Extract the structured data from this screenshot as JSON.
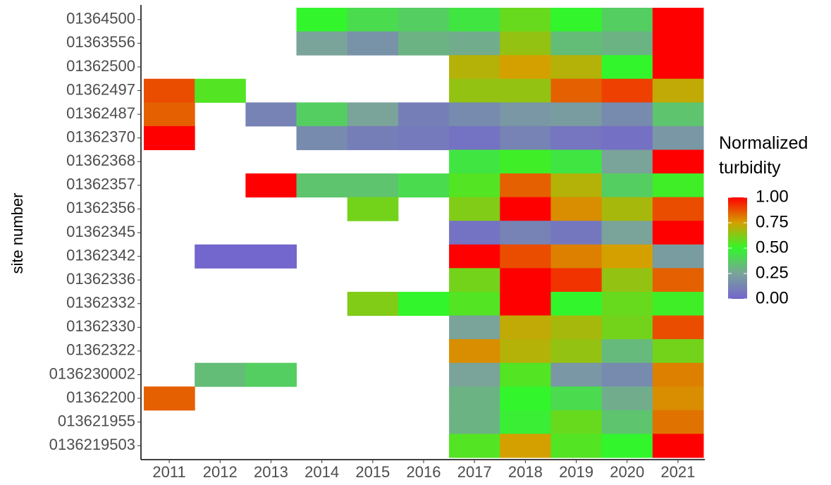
{
  "chart_data": {
    "type": "heatmap",
    "x_label": "",
    "y_label": "site number",
    "legend_title": "Normalized turbidity",
    "categories": [
      "2011",
      "2012",
      "2013",
      "2014",
      "2015",
      "2016",
      "2017",
      "2018",
      "2019",
      "2020",
      "2021"
    ],
    "y_categories": [
      "01364500",
      "01363556",
      "01362500",
      "01362497",
      "01362487",
      "01362370",
      "01362368",
      "01362357",
      "01362356",
      "01362345",
      "01362342",
      "01362336",
      "01362332",
      "01362330",
      "01362322",
      "0136230002",
      "01362200",
      "013621955",
      "0136219503"
    ],
    "values": [
      [
        null,
        null,
        null,
        0.5,
        0.42,
        0.38,
        0.45,
        0.58,
        0.5,
        0.38,
        1.0
      ],
      [
        null,
        null,
        null,
        0.25,
        0.18,
        0.3,
        0.28,
        0.65,
        0.33,
        0.3,
        1.0
      ],
      [
        null,
        null,
        null,
        null,
        null,
        null,
        0.7,
        0.75,
        0.7,
        0.5,
        1.0
      ],
      [
        0.88,
        0.55,
        null,
        null,
        null,
        null,
        0.65,
        0.65,
        0.85,
        0.9,
        0.72
      ],
      [
        0.85,
        null,
        0.12,
        0.38,
        0.25,
        0.1,
        0.15,
        0.2,
        0.22,
        0.15,
        0.35
      ],
      [
        1.0,
        null,
        null,
        0.15,
        0.1,
        0.08,
        0.05,
        0.12,
        0.06,
        0.04,
        0.2
      ],
      [
        null,
        null,
        null,
        null,
        null,
        null,
        0.45,
        0.52,
        0.45,
        0.25,
        1.0
      ],
      [
        null,
        null,
        1.0,
        0.35,
        0.35,
        0.42,
        0.55,
        0.85,
        0.7,
        0.38,
        0.52
      ],
      [
        null,
        null,
        null,
        null,
        0.6,
        null,
        0.62,
        1.0,
        0.78,
        0.68,
        0.88
      ],
      [
        null,
        null,
        null,
        null,
        null,
        null,
        0.05,
        0.12,
        0.07,
        0.25,
        1.0
      ],
      [
        null,
        0.0,
        0.0,
        null,
        null,
        null,
        1.0,
        0.88,
        0.8,
        0.75,
        0.22
      ],
      [
        null,
        null,
        null,
        null,
        null,
        null,
        0.6,
        1.0,
        0.92,
        0.65,
        0.85
      ],
      [
        null,
        null,
        null,
        null,
        0.62,
        0.5,
        0.55,
        1.0,
        0.5,
        0.58,
        0.52
      ],
      [
        null,
        null,
        null,
        null,
        null,
        null,
        0.25,
        0.72,
        0.68,
        0.6,
        0.88
      ],
      [
        null,
        null,
        null,
        null,
        null,
        null,
        0.78,
        0.7,
        0.65,
        0.32,
        0.6
      ],
      [
        null,
        0.33,
        0.38,
        null,
        null,
        null,
        0.25,
        0.55,
        0.2,
        0.15,
        0.8
      ],
      [
        0.85,
        null,
        null,
        null,
        null,
        null,
        0.3,
        0.5,
        0.42,
        0.28,
        0.78
      ],
      [
        null,
        null,
        null,
        null,
        null,
        null,
        0.3,
        0.48,
        0.58,
        0.35,
        0.82
      ],
      [
        null,
        null,
        null,
        null,
        null,
        null,
        0.55,
        0.75,
        0.55,
        0.5,
        1.0
      ]
    ],
    "colorscale": [
      "#7366cc",
      "#7aa39a",
      "#33f52c",
      "#d4a000",
      "#ff0000"
    ],
    "clim": [
      0,
      1
    ],
    "cticks": [
      {
        "value": 0,
        "label": "0.00"
      },
      {
        "value": 0.25,
        "label": "0.25"
      },
      {
        "value": 0.5,
        "label": "0.50"
      },
      {
        "value": 0.75,
        "label": "0.75"
      },
      {
        "value": 1,
        "label": "1.00"
      }
    ]
  }
}
